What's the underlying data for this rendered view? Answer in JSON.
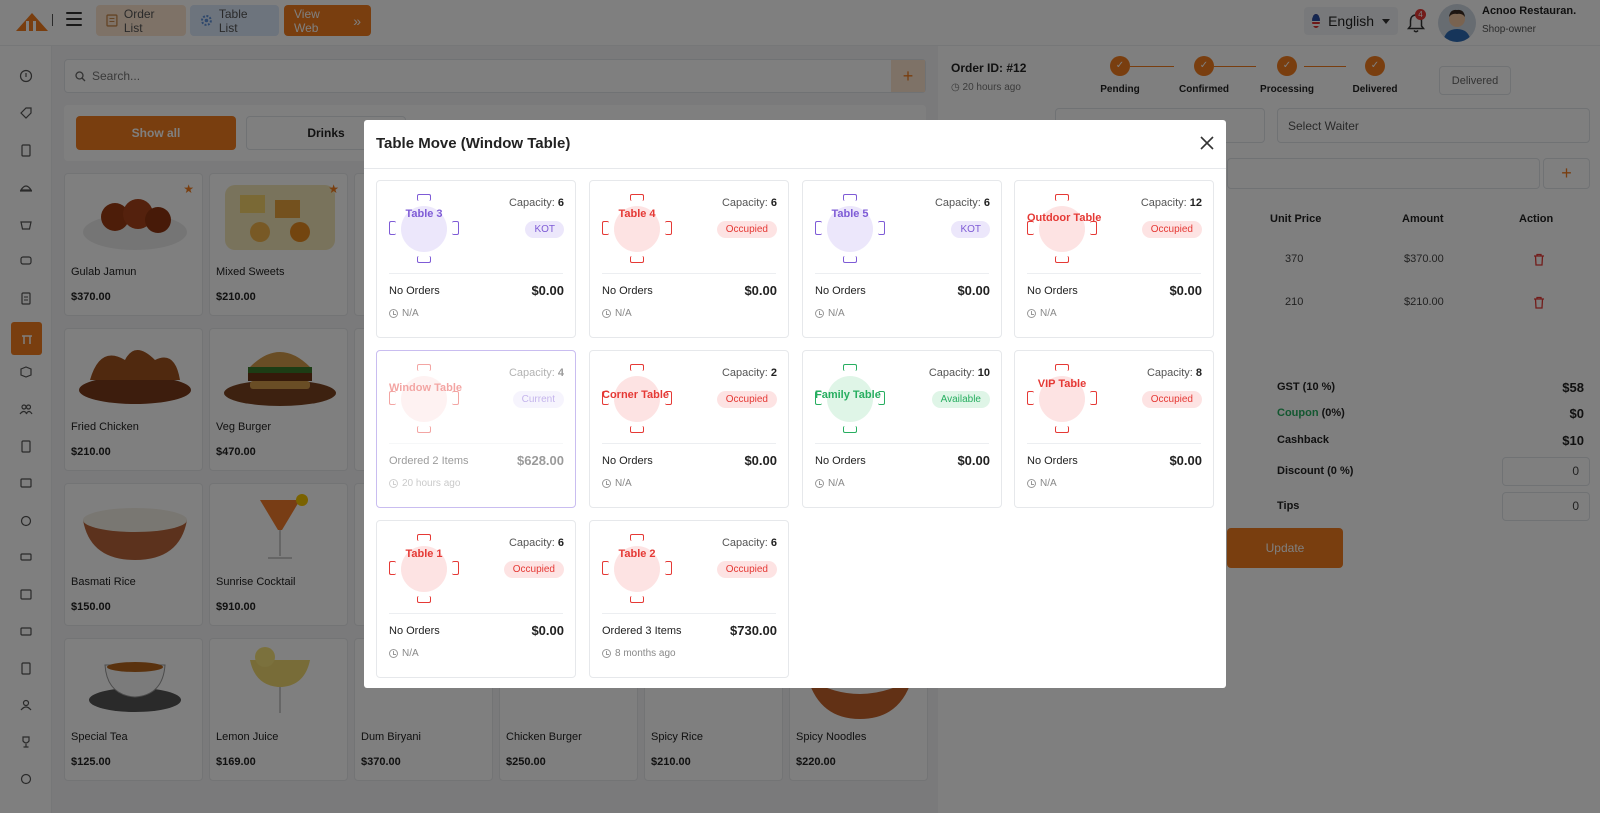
{
  "topbar": {
    "buttons": {
      "order_list": "Order List",
      "table_list": "Table List",
      "view_web": "View Web"
    },
    "language": "English",
    "notification_count": "4",
    "user": {
      "name": "Acnoo Restauran.",
      "role": "Shop-owner"
    }
  },
  "pos": {
    "search_placeholder": "Search...",
    "categories": {
      "all": "Show all",
      "drinks": "Drinks"
    },
    "products": [
      {
        "name": "Gulab Jamun",
        "price": "$370.00",
        "favorite": true
      },
      {
        "name": "Mixed Sweets",
        "price": "$210.00",
        "favorite": true
      },
      {
        "name": "Fried Chicken",
        "price": "$210.00"
      },
      {
        "name": "Veg Burger",
        "price": "$470.00"
      },
      {
        "name": "Basmati Rice",
        "price": "$150.00"
      },
      {
        "name": "Sunrise Cocktail",
        "price": "$910.00"
      },
      {
        "name": "Special Tea",
        "price": "$125.00"
      },
      {
        "name": "Lemon Juice",
        "price": "$169.00"
      },
      {
        "name": "Dum Biryani",
        "price": "$370.00"
      },
      {
        "name": "Chicken Burger",
        "price": "$250.00"
      },
      {
        "name": "Spicy Rice",
        "price": "$210.00"
      },
      {
        "name": "Spicy Noodles",
        "price": "$220.00"
      }
    ]
  },
  "order": {
    "id": "Order ID: #12",
    "time": "20 hours ago",
    "steps": [
      "Pending",
      "Confirmed",
      "Processing",
      "Delivered"
    ],
    "status_button": "Delivered",
    "waiter_placeholder": "Select Waiter",
    "columns": {
      "unit_price": "Unit Price",
      "amount": "Amount",
      "action": "Action"
    },
    "rows": [
      {
        "unit_price": "370",
        "amount": "$370.00"
      },
      {
        "unit_price": "210",
        "amount": "$210.00"
      }
    ],
    "summary": {
      "gst_label": "GST (10 %)",
      "gst_value": "$58",
      "coupon_label": "Coupon",
      "coupon_suffix": "(0%)",
      "coupon_value": "$0",
      "cashback_label": "Cashback",
      "cashback_value": "$10",
      "discount_label": "Discount (0 %)",
      "discount_value": "0",
      "tips_label": "Tips",
      "tips_value": "0"
    },
    "update_button": "Update"
  },
  "modal": {
    "title": "Table Move (Window Table)",
    "capacity_label": "Capacity:",
    "tables": [
      {
        "name": "Table 3",
        "capacity": "6",
        "status": "KOT",
        "orders": "No Orders",
        "amount": "$0.00",
        "time": "N/A"
      },
      {
        "name": "Table 4",
        "capacity": "6",
        "status": "Occupied",
        "orders": "No Orders",
        "amount": "$0.00",
        "time": "N/A"
      },
      {
        "name": "Table 5",
        "capacity": "6",
        "status": "KOT",
        "orders": "No Orders",
        "amount": "$0.00",
        "time": "N/A"
      },
      {
        "name": "Outdoor Table",
        "capacity": "12",
        "status": "Occupied",
        "orders": "No Orders",
        "amount": "$0.00",
        "time": "N/A"
      },
      {
        "name": "Window Table",
        "capacity": "4",
        "status": "Current",
        "orders": "Ordered 2 Items",
        "amount": "$628.00",
        "time": "20 hours ago"
      },
      {
        "name": "Corner Table",
        "capacity": "2",
        "status": "Occupied",
        "orders": "No Orders",
        "amount": "$0.00",
        "time": "N/A"
      },
      {
        "name": "Family Table",
        "capacity": "10",
        "status": "Available",
        "orders": "No Orders",
        "amount": "$0.00",
        "time": "N/A"
      },
      {
        "name": "VIP Table",
        "capacity": "8",
        "status": "Occupied",
        "orders": "No Orders",
        "amount": "$0.00",
        "time": "N/A"
      },
      {
        "name": "Table 1",
        "capacity": "6",
        "status": "Occupied",
        "orders": "No Orders",
        "amount": "$0.00",
        "time": "N/A"
      },
      {
        "name": "Table 2",
        "capacity": "6",
        "status": "Occupied",
        "orders": "Ordered 3 Items",
        "amount": "$730.00",
        "time": "8 months ago"
      }
    ]
  },
  "colors": {
    "accent": "#f27c1e",
    "kot": "#7e5bd6",
    "occupied": "#e53935",
    "available": "#27ae60"
  }
}
